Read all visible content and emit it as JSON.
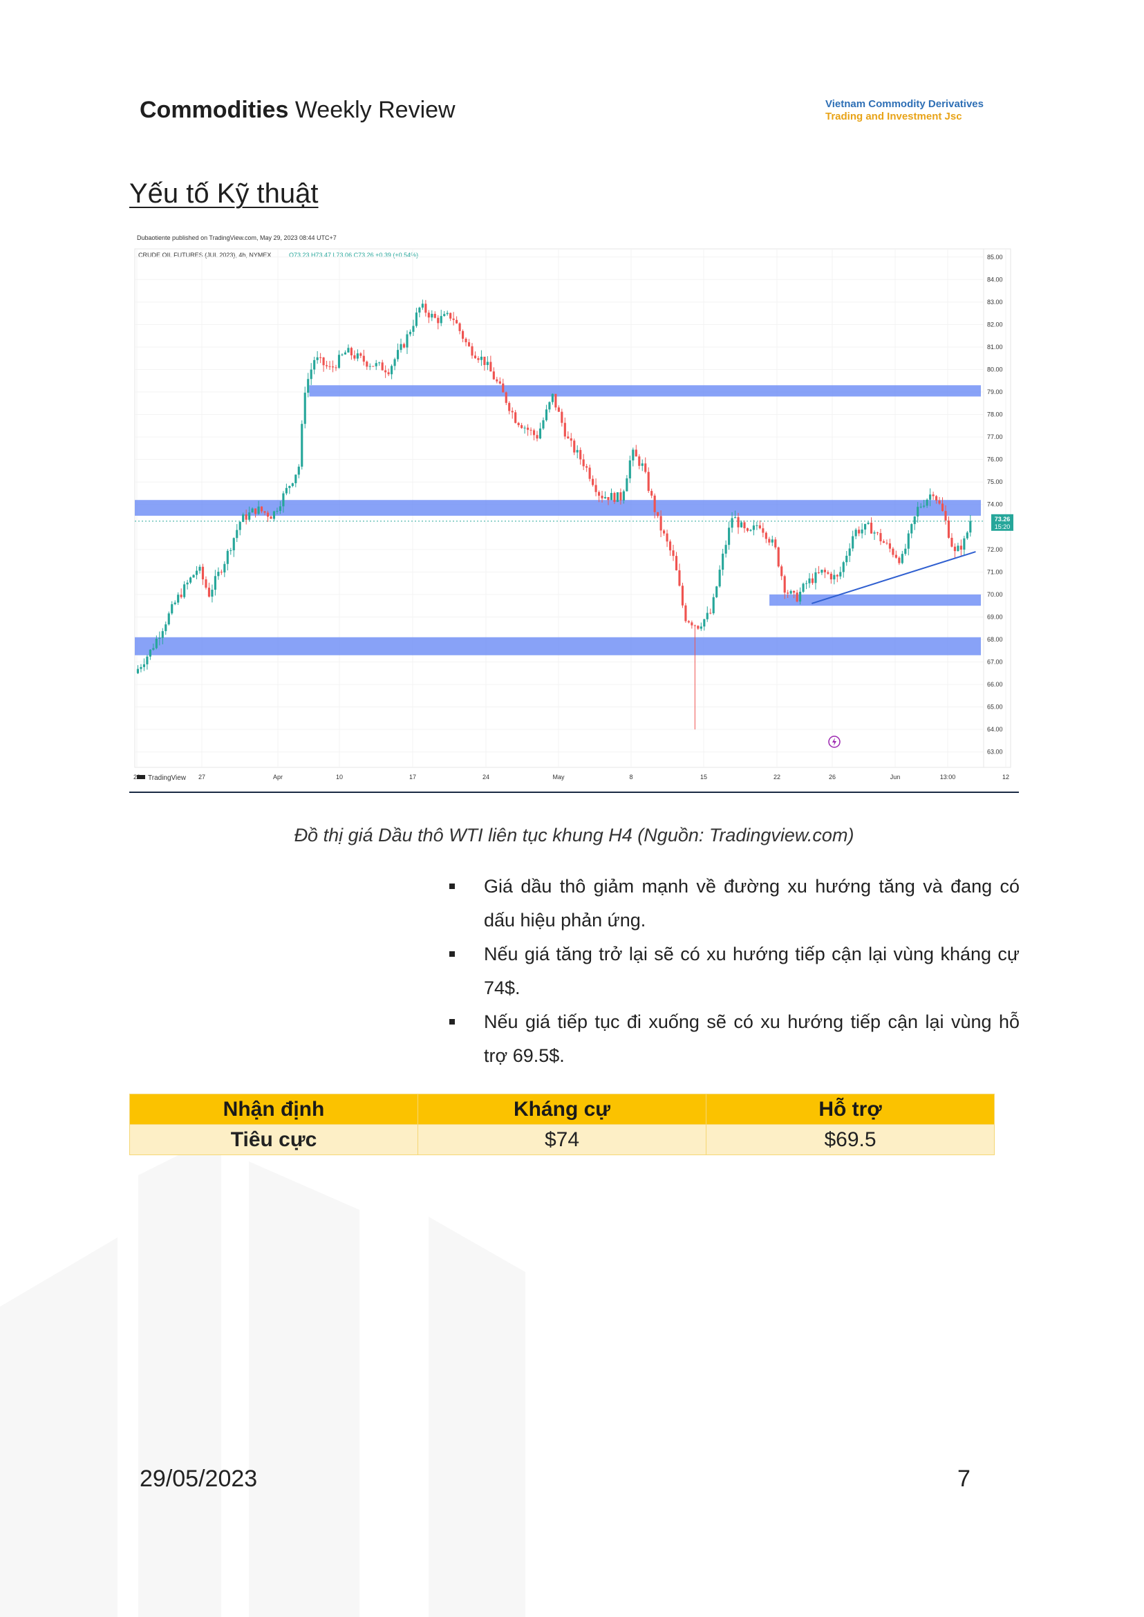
{
  "header": {
    "title_bold": "Commodities",
    "title_rest": "Weekly Review",
    "company_line1": "Vietnam Commodity Derivatives",
    "company_line2": "Trading and Investment Jsc"
  },
  "section_title": "Yếu tố Kỹ thuật",
  "chart": {
    "published": "Dubaotiente published on TradingView.com, May 29, 2023 08:44 UTC+7",
    "symbol": "CRUDE OIL FUTURES (JUL 2023), 4h, NYMEX",
    "ohlc": "O73.23 H73.47 L73.06 C73.26 +0.39 (+0.54%)",
    "price_tag": "73.26",
    "time_tag": "15:20",
    "watermark": "TradingView",
    "colors": {
      "up": "#26a69a",
      "down": "#ef5350",
      "zone": "#6e8ef5",
      "trend": "#2f5fd0"
    }
  },
  "chart_data": {
    "type": "candlestick",
    "title": "CRUDE OIL FUTURES (JUL 2023), 4h, NYMEX",
    "y_ticks": [
      "85.00",
      "84.00",
      "83.00",
      "82.00",
      "81.00",
      "80.00",
      "79.00",
      "78.00",
      "77.00",
      "76.00",
      "75.00",
      "74.00",
      "72.00",
      "71.00",
      "70.00",
      "69.00",
      "68.00",
      "67.00",
      "66.00",
      "65.00",
      "64.00",
      "63.00"
    ],
    "ylim": [
      62.5,
      85.3
    ],
    "x_ticks": [
      "20",
      "27",
      "Apr",
      "10",
      "17",
      "24",
      "May",
      "8",
      "15",
      "22",
      "26",
      "Jun",
      "13:00",
      "12"
    ],
    "price_path": [
      [
        20,
        66.5
      ],
      [
        21.5,
        67.5
      ],
      [
        24,
        69.8
      ],
      [
        26,
        71.2
      ],
      [
        27,
        70.0
      ],
      [
        28.5,
        71.5
      ],
      [
        30,
        73.3
      ],
      [
        31.5,
        73.8
      ],
      [
        33,
        73.5
      ],
      [
        35,
        75.2
      ],
      [
        35.6,
        75.8
      ],
      [
        36,
        79.0
      ],
      [
        37,
        80.5
      ],
      [
        38.5,
        80.0
      ],
      [
        40,
        80.8
      ],
      [
        42,
        80.3
      ],
      [
        44,
        80.0
      ],
      [
        45.5,
        81.2
      ],
      [
        47,
        82.8
      ],
      [
        48.5,
        82.2
      ],
      [
        50,
        82.4
      ],
      [
        51.5,
        81.0
      ],
      [
        53,
        80.4
      ],
      [
        54.5,
        79.2
      ],
      [
        56,
        77.8
      ],
      [
        58,
        77.0
      ],
      [
        59.5,
        78.8
      ],
      [
        61,
        76.8
      ],
      [
        62.5,
        75.8
      ],
      [
        64,
        74.4
      ],
      [
        66,
        74.3
      ],
      [
        67,
        76.3
      ],
      [
        68,
        75.7
      ],
      [
        69.5,
        73.2
      ],
      [
        71,
        71.5
      ],
      [
        72,
        69.0
      ],
      [
        73.2,
        68.6
      ],
      [
        74.5,
        69.2
      ],
      [
        75.5,
        71.5
      ],
      [
        76.5,
        73.5
      ],
      [
        78,
        72.6
      ],
      [
        79,
        73.2
      ],
      [
        80.5,
        72.1
      ],
      [
        81.5,
        70.2
      ],
      [
        82.5,
        69.8
      ],
      [
        83.5,
        70.5
      ],
      [
        85,
        71.0
      ],
      [
        86.5,
        70.7
      ],
      [
        88,
        72.8
      ],
      [
        89.5,
        73.0
      ],
      [
        91,
        72.2
      ],
      [
        92.5,
        71.5
      ],
      [
        94,
        73.8
      ],
      [
        95.5,
        74.6
      ],
      [
        96.5,
        73.5
      ],
      [
        97.5,
        71.8
      ],
      [
        98.5,
        72.4
      ],
      [
        99,
        73.3
      ]
    ],
    "zones": [
      {
        "from": 79.3,
        "to": 78.8,
        "start": 36.5
      },
      {
        "from": 74.2,
        "to": 73.5,
        "start": 20
      },
      {
        "from": 70.0,
        "to": 69.5,
        "start": 80
      },
      {
        "from": 68.1,
        "to": 67.3,
        "start": 20
      }
    ],
    "trendline": {
      "x": [
        84,
        99.5
      ],
      "y": [
        69.6,
        71.9
      ]
    },
    "spike_low": 64.0,
    "last_price": 73.26
  },
  "caption": "Đồ thị giá Dầu thô WTI liên tục khung H4 (Nguồn: Tradingview.com)",
  "bullets": [
    "Giá dầu thô giảm mạnh về đường xu hướng tăng và đang có dấu hiệu phản ứng.",
    "Nếu giá tăng trở lại sẽ có xu hướng tiếp cận lại vùng kháng cự 74$.",
    "Nếu giá tiếp tục đi xuống sẽ có xu hướng tiếp cận lại vùng hỗ trợ 69.5$."
  ],
  "table": {
    "headers": [
      "Nhận định",
      "Kháng cự",
      "Hỗ trợ"
    ],
    "row": [
      "Tiêu cực",
      "$74",
      "$69.5"
    ]
  },
  "footer": {
    "date": "29/05/2023",
    "page": "7"
  }
}
